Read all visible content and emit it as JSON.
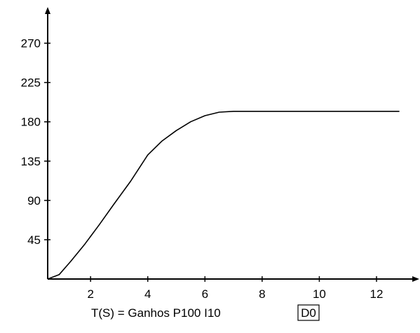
{
  "chart_data": {
    "type": "line",
    "title": "",
    "ylabel": "",
    "xlabel": {
      "text": "T(S) = Ganhos  P100  I10",
      "boxed": "D0"
    },
    "xlim": [
      0.5,
      13.3
    ],
    "ylim": [
      0,
      305
    ],
    "x_ticks": [
      2,
      4,
      6,
      8,
      10,
      12
    ],
    "y_ticks": [
      45,
      90,
      135,
      180,
      225,
      270
    ],
    "grid": false,
    "line_color": "#000000",
    "series": [
      {
        "x": [
          0.5,
          0.9,
          1.3,
          1.8,
          2.3,
          2.8,
          3.4,
          4.0,
          4.5,
          5.0,
          5.5,
          6.0,
          6.5,
          7.0,
          8.0,
          10.0,
          12.0,
          12.8
        ],
        "y": [
          0,
          5,
          20,
          40,
          62,
          85,
          112,
          142,
          158,
          170,
          180,
          187,
          191,
          192,
          192,
          192,
          192,
          192
        ]
      }
    ]
  }
}
